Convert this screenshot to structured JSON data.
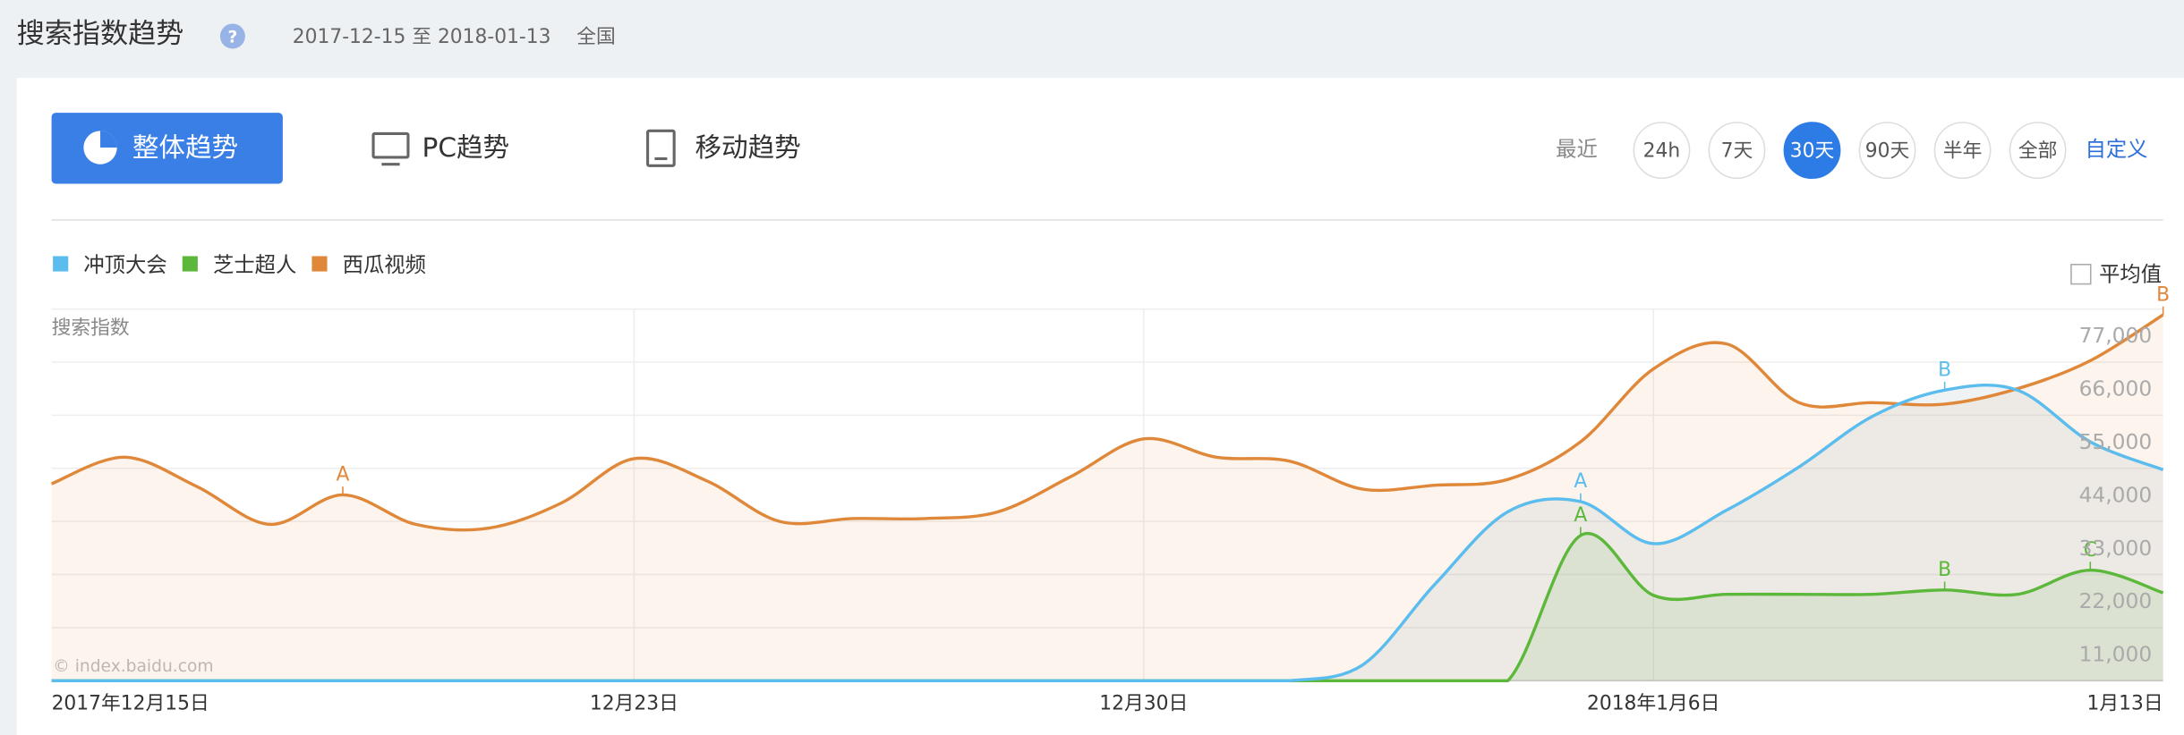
{
  "header": {
    "title": "搜索指数趋势",
    "help": "?",
    "date_range": "2017-12-15 至 2018-01-13",
    "region": "全国"
  },
  "tabs": [
    "整体趋势",
    "PC趋势",
    "移动趋势"
  ],
  "range": {
    "label": "最近",
    "options": [
      "24h",
      "7天",
      "30天",
      "90天",
      "半年",
      "全部"
    ],
    "selected": 2,
    "custom": "自定义"
  },
  "average_label": "平均值",
  "chart_data": {
    "type": "line",
    "y_label": "搜索指数",
    "watermark": "© index.baidu.com",
    "categories": [
      "2017年12月15日",
      null,
      null,
      null,
      null,
      null,
      null,
      null,
      "12月23日",
      null,
      null,
      null,
      null,
      null,
      null,
      "12月30日",
      null,
      null,
      null,
      null,
      null,
      null,
      "2018年1月6日",
      null,
      null,
      null,
      null,
      null,
      null,
      "1月13日"
    ],
    "ylim": [
      0,
      77000
    ],
    "yticks": [
      {
        "value": 11000,
        "label": "11,000"
      },
      {
        "value": 22000,
        "label": "22,000"
      },
      {
        "value": 33000,
        "label": "33,000"
      },
      {
        "value": 44000,
        "label": "44,000"
      },
      {
        "value": 55000,
        "label": "55,000"
      },
      {
        "value": 66000,
        "label": "66,000"
      },
      {
        "value": 77000,
        "label": "77,000"
      }
    ],
    "grid": true,
    "series": [
      {
        "name": "冲顶大会",
        "color": "#5bbcee",
        "fill": "rgba(150,170,180,0.14)",
        "values": [
          0,
          0,
          0,
          0,
          0,
          0,
          0,
          0,
          0,
          0,
          0,
          0,
          0,
          0,
          0,
          0,
          0,
          0,
          3200,
          20000,
          35000,
          37100,
          28400,
          35300,
          44300,
          54700,
          60200,
          60200,
          49500,
          43700
        ],
        "markers": [
          {
            "index": 21,
            "label": "A"
          },
          {
            "index": 26,
            "label": "B"
          }
        ]
      },
      {
        "name": "芝士超人",
        "color": "#5cb83a",
        "fill": "rgba(92,184,58,0.12)",
        "values": [
          0,
          0,
          0,
          0,
          0,
          0,
          0,
          0,
          0,
          0,
          0,
          0,
          0,
          0,
          0,
          0,
          0,
          0,
          0,
          0,
          0,
          30100,
          17700,
          17900,
          17900,
          17900,
          18800,
          17900,
          22900,
          18200
        ],
        "markers": [
          {
            "index": 21,
            "label": "A"
          },
          {
            "index": 26,
            "label": "B"
          },
          {
            "index": 28,
            "label": "C"
          }
        ]
      },
      {
        "name": "西瓜视频",
        "color": "#e0883a",
        "fill": "rgba(224,136,58,0.09)",
        "values": [
          40800,
          46300,
          40200,
          32400,
          38500,
          32400,
          31600,
          36800,
          46000,
          41400,
          33000,
          33600,
          33600,
          35000,
          42300,
          50100,
          46300,
          45500,
          39700,
          40500,
          41700,
          49500,
          64600,
          69800,
          57600,
          57600,
          57300,
          60500,
          66300,
          75800
        ],
        "markers": [
          {
            "index": 4,
            "label": "A"
          },
          {
            "index": 29,
            "label": "B"
          }
        ]
      }
    ]
  }
}
